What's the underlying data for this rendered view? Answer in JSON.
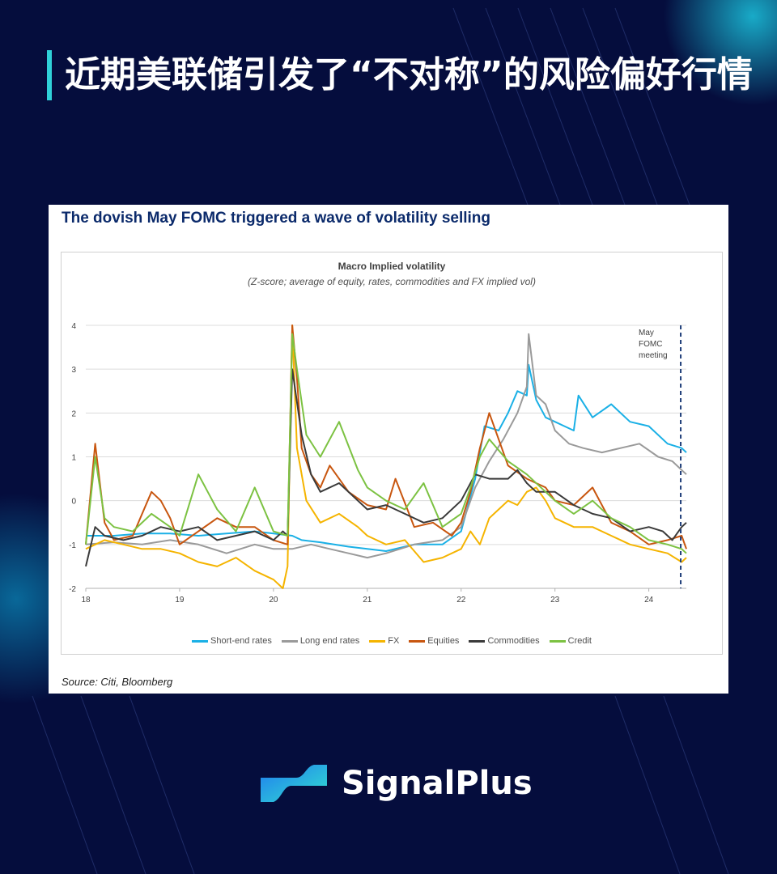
{
  "headline": "近期美联储引发了“不对称”的风险偏好行情",
  "card": {
    "title": "The dovish May FOMC triggered a wave of volatility selling",
    "source": "Source: Citi, Bloomberg"
  },
  "brand": {
    "name": "SignalPlus",
    "logo_icon": "signalplus-logo-icon"
  },
  "colors": {
    "background": "#050d3d",
    "accent": "#2fd0d8",
    "title_blue": "#0b2a6b"
  },
  "chart_data": {
    "type": "line",
    "title": "Macro Implied volatility",
    "subtitle": "(Z-score; average of equity, rates, commodities and FX implied vol)",
    "xlabel": "",
    "ylabel": "",
    "x_ticks": [
      "18",
      "19",
      "20",
      "21",
      "22",
      "23",
      "24"
    ],
    "y_ticks": [
      "4",
      "3",
      "2",
      "1",
      "0",
      "-1",
      "-2"
    ],
    "xlim": [
      2018.0,
      2024.4
    ],
    "ylim": [
      -2,
      4
    ],
    "grid": true,
    "legend_position": "bottom",
    "annotation": {
      "lines": [
        "May",
        "FOMC",
        "meeting"
      ],
      "x": 2024.34
    },
    "series": [
      {
        "name": "Short-end rates",
        "color": "#1ab0e6",
        "x": [
          2018.0,
          2018.3,
          2018.6,
          2018.9,
          2019.2,
          2019.5,
          2019.8,
          2020.0,
          2020.2,
          2020.3,
          2020.5,
          2020.8,
          2021.0,
          2021.2,
          2021.5,
          2021.8,
          2022.0,
          2022.15,
          2022.25,
          2022.4,
          2022.5,
          2022.6,
          2022.7,
          2022.72,
          2022.8,
          2022.9,
          2023.0,
          2023.1,
          2023.2,
          2023.25,
          2023.4,
          2023.6,
          2023.8,
          2024.0,
          2024.2,
          2024.35,
          2024.4
        ],
        "values": [
          -0.8,
          -0.8,
          -0.75,
          -0.75,
          -0.8,
          -0.75,
          -0.7,
          -0.75,
          -0.8,
          -0.9,
          -0.95,
          -1.05,
          -1.1,
          -1.15,
          -1.0,
          -1.0,
          -0.7,
          0.5,
          1.7,
          1.6,
          2.0,
          2.5,
          2.4,
          3.1,
          2.3,
          1.9,
          1.8,
          1.7,
          1.6,
          2.4,
          1.9,
          2.2,
          1.8,
          1.7,
          1.3,
          1.2,
          1.1
        ]
      },
      {
        "name": "Long end rates",
        "color": "#9a9a9a",
        "x": [
          2018.0,
          2018.3,
          2018.6,
          2018.9,
          2019.2,
          2019.5,
          2019.8,
          2020.0,
          2020.2,
          2020.4,
          2020.6,
          2020.8,
          2021.0,
          2021.2,
          2021.5,
          2021.8,
          2022.0,
          2022.15,
          2022.3,
          2022.45,
          2022.6,
          2022.7,
          2022.72,
          2022.8,
          2022.9,
          2023.0,
          2023.15,
          2023.3,
          2023.5,
          2023.7,
          2023.9,
          2024.1,
          2024.25,
          2024.35,
          2024.4
        ],
        "values": [
          -1.0,
          -0.95,
          -1.0,
          -0.9,
          -1.0,
          -1.2,
          -1.0,
          -1.1,
          -1.1,
          -1.0,
          -1.1,
          -1.2,
          -1.3,
          -1.2,
          -1.0,
          -0.9,
          -0.6,
          0.3,
          0.9,
          1.4,
          2.0,
          2.6,
          3.8,
          2.4,
          2.2,
          1.6,
          1.3,
          1.2,
          1.1,
          1.2,
          1.3,
          1.0,
          0.9,
          0.7,
          0.6
        ]
      },
      {
        "name": "FX",
        "color": "#f5b400",
        "x": [
          2018.0,
          2018.2,
          2018.4,
          2018.6,
          2018.8,
          2019.0,
          2019.2,
          2019.4,
          2019.6,
          2019.8,
          2020.0,
          2020.1,
          2020.15,
          2020.2,
          2020.25,
          2020.35,
          2020.5,
          2020.7,
          2020.9,
          2021.0,
          2021.2,
          2021.4,
          2021.6,
          2021.8,
          2022.0,
          2022.1,
          2022.2,
          2022.3,
          2022.4,
          2022.5,
          2022.6,
          2022.7,
          2022.8,
          2022.9,
          2023.0,
          2023.2,
          2023.4,
          2023.6,
          2023.8,
          2024.0,
          2024.2,
          2024.35,
          2024.4
        ],
        "values": [
          -1.1,
          -0.9,
          -1.0,
          -1.1,
          -1.1,
          -1.2,
          -1.4,
          -1.5,
          -1.3,
          -1.6,
          -1.8,
          -2.0,
          -1.5,
          4.0,
          1.2,
          0.0,
          -0.5,
          -0.3,
          -0.6,
          -0.8,
          -1.0,
          -0.9,
          -1.4,
          -1.3,
          -1.1,
          -0.7,
          -1.0,
          -0.4,
          -0.2,
          0.0,
          -0.1,
          0.2,
          0.3,
          0.0,
          -0.4,
          -0.6,
          -0.6,
          -0.8,
          -1.0,
          -1.1,
          -1.2,
          -1.4,
          -1.3
        ]
      },
      {
        "name": "Equities",
        "color": "#c8560f",
        "x": [
          2018.0,
          2018.1,
          2018.2,
          2018.3,
          2018.5,
          2018.7,
          2018.8,
          2018.9,
          2019.0,
          2019.2,
          2019.4,
          2019.6,
          2019.8,
          2020.0,
          2020.15,
          2020.2,
          2020.25,
          2020.3,
          2020.4,
          2020.5,
          2020.6,
          2020.8,
          2021.0,
          2021.2,
          2021.3,
          2021.5,
          2021.7,
          2021.9,
          2022.0,
          2022.1,
          2022.2,
          2022.3,
          2022.5,
          2022.7,
          2022.9,
          2023.0,
          2023.2,
          2023.4,
          2023.6,
          2023.8,
          2024.0,
          2024.2,
          2024.35,
          2024.4
        ],
        "values": [
          -1.0,
          1.3,
          -0.5,
          -0.9,
          -0.8,
          0.2,
          0.0,
          -0.4,
          -1.0,
          -0.7,
          -0.4,
          -0.6,
          -0.6,
          -0.9,
          -1.0,
          4.0,
          2.8,
          1.2,
          0.6,
          0.3,
          0.8,
          0.2,
          -0.1,
          -0.2,
          0.5,
          -0.6,
          -0.5,
          -0.8,
          -0.5,
          0.2,
          1.2,
          2.0,
          0.8,
          0.5,
          0.3,
          0.0,
          -0.1,
          0.3,
          -0.5,
          -0.7,
          -1.0,
          -0.9,
          -0.8,
          -1.1
        ]
      },
      {
        "name": "Commodities",
        "color": "#3a3a3a",
        "x": [
          2018.0,
          2018.1,
          2018.2,
          2018.4,
          2018.6,
          2018.8,
          2019.0,
          2019.2,
          2019.4,
          2019.6,
          2019.8,
          2020.0,
          2020.1,
          2020.15,
          2020.2,
          2020.3,
          2020.4,
          2020.5,
          2020.7,
          2020.9,
          2021.0,
          2021.2,
          2021.4,
          2021.6,
          2021.8,
          2022.0,
          2022.15,
          2022.3,
          2022.5,
          2022.6,
          2022.7,
          2022.8,
          2023.0,
          2023.2,
          2023.4,
          2023.6,
          2023.8,
          2024.0,
          2024.15,
          2024.25,
          2024.35,
          2024.4
        ],
        "values": [
          -1.5,
          -0.6,
          -0.8,
          -0.9,
          -0.8,
          -0.6,
          -0.7,
          -0.6,
          -0.9,
          -0.8,
          -0.7,
          -0.9,
          -0.7,
          -0.8,
          3.0,
          1.5,
          0.6,
          0.2,
          0.4,
          0.0,
          -0.2,
          -0.1,
          -0.3,
          -0.5,
          -0.4,
          0.0,
          0.6,
          0.5,
          0.5,
          0.7,
          0.4,
          0.2,
          0.2,
          -0.1,
          -0.3,
          -0.4,
          -0.7,
          -0.6,
          -0.7,
          -0.9,
          -0.6,
          -0.5
        ]
      },
      {
        "name": "Credit",
        "color": "#7cc242",
        "x": [
          2018.0,
          2018.1,
          2018.2,
          2018.3,
          2018.5,
          2018.7,
          2018.9,
          2019.0,
          2019.2,
          2019.4,
          2019.6,
          2019.8,
          2020.0,
          2020.15,
          2020.2,
          2020.25,
          2020.35,
          2020.5,
          2020.7,
          2020.9,
          2021.0,
          2021.2,
          2021.4,
          2021.6,
          2021.8,
          2022.0,
          2022.1,
          2022.2,
          2022.3,
          2022.5,
          2022.7,
          2022.9,
          2023.0,
          2023.2,
          2023.4,
          2023.6,
          2023.8,
          2024.0,
          2024.2,
          2024.35,
          2024.4
        ],
        "values": [
          -1.0,
          1.0,
          -0.4,
          -0.6,
          -0.7,
          -0.3,
          -0.6,
          -0.8,
          0.6,
          -0.2,
          -0.7,
          0.3,
          -0.7,
          -0.8,
          3.8,
          3.0,
          1.5,
          1.0,
          1.8,
          0.7,
          0.3,
          0.0,
          -0.2,
          0.4,
          -0.6,
          -0.3,
          0.3,
          1.0,
          1.4,
          0.9,
          0.6,
          0.2,
          0.0,
          -0.3,
          0.0,
          -0.4,
          -0.6,
          -0.9,
          -1.0,
          -1.1,
          -1.2
        ]
      }
    ]
  }
}
